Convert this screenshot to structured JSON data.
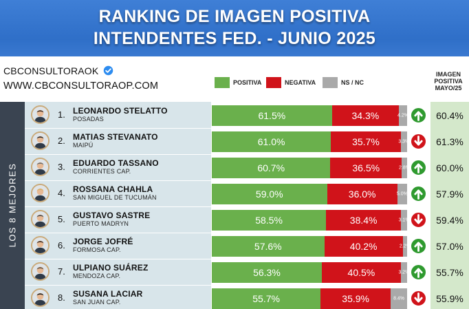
{
  "header": {
    "title_line1": "RANKING DE IMAGEN POSITIVA",
    "title_line2": "INTENDENTES FED. - JUNIO 2025"
  },
  "brand": {
    "handle": "CBCONSULTORAOK",
    "website": "WWW.CBCONSULTORAOP.COM"
  },
  "legend": {
    "positive": "POSITIVA",
    "negative": "NEGATIVA",
    "nsnc": "NS / NC"
  },
  "colors": {
    "positive": "#6ab04c",
    "negative": "#d0131a",
    "nsnc": "#a9a9a9",
    "header": "#2f6fc8"
  },
  "column_header": {
    "line1": "IMAGEN",
    "line2": "POSITIVA",
    "line3": "MAYO/25"
  },
  "side_label": "LOS 8 MEJORES",
  "chart_data": {
    "type": "bar",
    "stacked": true,
    "orientation": "horizontal",
    "categories": [
      "LEONARDO STELATTO",
      "MATIAS STEVANATO",
      "EDUARDO TASSANO",
      "ROSSANA CHAHLA",
      "GUSTAVO SASTRE",
      "JORGE JOFRÉ",
      "ULPIANO SUÁREZ",
      "SUSANA LACIAR"
    ],
    "series": [
      {
        "name": "POSITIVA",
        "values": [
          61.5,
          61.0,
          60.7,
          59.0,
          58.5,
          57.6,
          56.3,
          55.7
        ]
      },
      {
        "name": "NEGATIVA",
        "values": [
          34.3,
          35.7,
          36.5,
          36.0,
          38.4,
          40.2,
          40.5,
          35.9
        ]
      },
      {
        "name": "NS / NC",
        "values": [
          4.2,
          3.3,
          2.8,
          5.0,
          3.1,
          2.2,
          3.2,
          8.4
        ]
      }
    ],
    "xlim": [
      0,
      100
    ],
    "rows": [
      {
        "rank": "1.",
        "name": "LEONARDO STELATTO",
        "city": "POSADAS",
        "pos": 61.5,
        "pos_label": "61.5%",
        "neg": 34.3,
        "neg_label": "34.3%",
        "ns": 4.2,
        "ns_label": "4.2%",
        "trend": "up",
        "prev": "60.4%"
      },
      {
        "rank": "2.",
        "name": "MATIAS STEVANATO",
        "city": "MAIPÚ",
        "pos": 61.0,
        "pos_label": "61.0%",
        "neg": 35.7,
        "neg_label": "35.7%",
        "ns": 3.3,
        "ns_label": "3.3%",
        "trend": "down",
        "prev": "61.3%"
      },
      {
        "rank": "3.",
        "name": "EDUARDO TASSANO",
        "city": "CORRIENTES  CAP.",
        "pos": 60.7,
        "pos_label": "60.7%",
        "neg": 36.5,
        "neg_label": "36.5%",
        "ns": 2.8,
        "ns_label": "2.8%",
        "trend": "up",
        "prev": "60.0%"
      },
      {
        "rank": "4.",
        "name": "ROSSANA CHAHLA",
        "city": "SAN MIGUEL DE TUCUMÁN",
        "pos": 59.0,
        "pos_label": "59.0%",
        "neg": 36.0,
        "neg_label": "36.0%",
        "ns": 5.0,
        "ns_label": "5.0%",
        "trend": "up",
        "prev": "57.9%"
      },
      {
        "rank": "5.",
        "name": "GUSTAVO SASTRE",
        "city": "PUERTO MADRYN",
        "pos": 58.5,
        "pos_label": "58.5%",
        "neg": 38.4,
        "neg_label": "38.4%",
        "ns": 3.1,
        "ns_label": "3.1%",
        "trend": "down",
        "prev": "59.4%"
      },
      {
        "rank": "6.",
        "name": "JORGE JOFRÉ",
        "city": "FORMOSA CAP.",
        "pos": 57.6,
        "pos_label": "57.6%",
        "neg": 40.2,
        "neg_label": "40.2%",
        "ns": 2.2,
        "ns_label": "2.2%",
        "trend": "up",
        "prev": "57.0%"
      },
      {
        "rank": "7.",
        "name": "ULPIANO SUÁREZ",
        "city": "MENDOZA CAP.",
        "pos": 56.3,
        "pos_label": "56.3%",
        "neg": 40.5,
        "neg_label": "40.5%",
        "ns": 3.2,
        "ns_label": "3.2%",
        "trend": "up",
        "prev": "55.7%"
      },
      {
        "rank": "8.",
        "name": "SUSANA LACIAR",
        "city": "SAN JUAN CAP.",
        "pos": 55.7,
        "pos_label": "55.7%",
        "neg": 35.9,
        "neg_label": "35.9%",
        "ns": 8.4,
        "ns_label": "8.4%",
        "trend": "down",
        "prev": "55.9%"
      }
    ]
  }
}
